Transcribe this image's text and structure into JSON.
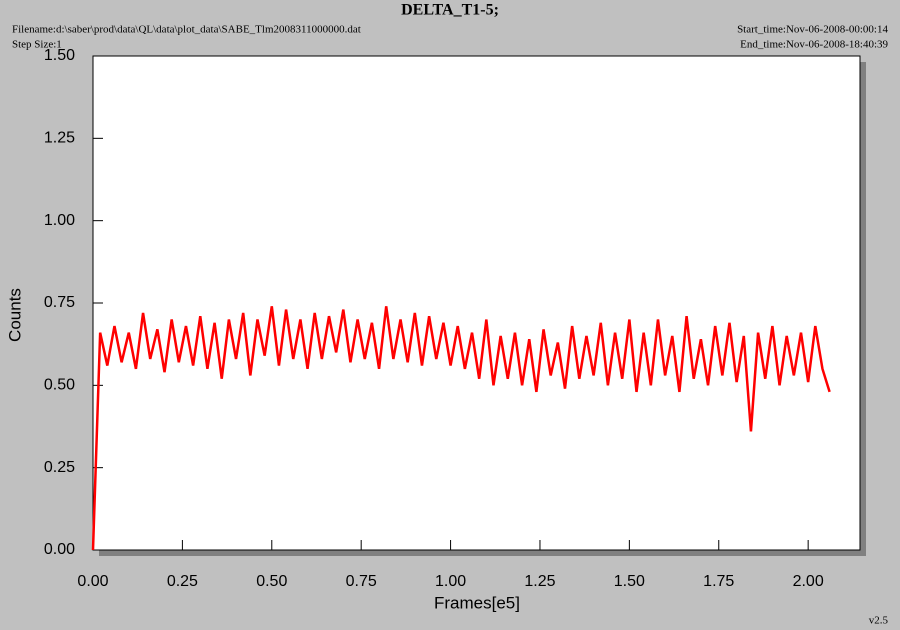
{
  "chart_data": {
    "type": "line",
    "title": "DELTA_T1-5;",
    "filename": "Filename:d:\\saber\\prod\\data\\QL\\data\\plot_data\\SABE_Tlm2008311000000.dat",
    "step_size": "Step Size:1",
    "start_time": "Start_time:Nov-06-2008-00:00:14",
    "end_time": "End_time:Nov-06-2008-18:40:39",
    "version": "v2.5",
    "x_label": "Frames[e5]",
    "y_label": "Counts",
    "xlim": [
      0,
      2.145
    ],
    "ylim": [
      0,
      1.5
    ],
    "xticks": [
      {
        "value": 0,
        "label": "0.00"
      },
      {
        "value": 0.25,
        "label": "0.25"
      },
      {
        "value": 0.5,
        "label": "0.50"
      },
      {
        "value": 0.75,
        "label": "0.75"
      },
      {
        "value": 1,
        "label": "1.00"
      },
      {
        "value": 1.25,
        "label": "1.25"
      },
      {
        "value": 1.5,
        "label": "1.50"
      },
      {
        "value": 1.75,
        "label": "1.75"
      },
      {
        "value": 2,
        "label": "2.00"
      }
    ],
    "yticks": [
      {
        "value": 0,
        "label": "0.00"
      },
      {
        "value": 0.25,
        "label": "0.25"
      },
      {
        "value": 0.5,
        "label": "0.50"
      },
      {
        "value": 0.75,
        "label": "0.75"
      },
      {
        "value": 1,
        "label": "1.00"
      },
      {
        "value": 1.25,
        "label": "1.25"
      },
      {
        "value": 1.5,
        "label": "1.50"
      }
    ],
    "x": [
      0,
      0.02,
      0.04,
      0.06,
      0.08,
      0.1,
      0.12,
      0.14,
      0.16,
      0.18,
      0.2,
      0.22,
      0.24,
      0.26,
      0.28,
      0.3,
      0.32,
      0.34,
      0.36,
      0.38,
      0.4,
      0.42,
      0.44,
      0.46,
      0.48,
      0.5,
      0.52,
      0.54,
      0.56,
      0.58,
      0.6,
      0.62,
      0.64,
      0.66,
      0.68,
      0.7,
      0.72,
      0.74,
      0.76,
      0.78,
      0.8,
      0.82,
      0.84,
      0.86,
      0.88,
      0.9,
      0.92,
      0.94,
      0.96,
      0.98,
      1,
      1.02,
      1.04,
      1.06,
      1.08,
      1.1,
      1.12,
      1.14,
      1.16,
      1.18,
      1.2,
      1.22,
      1.24,
      1.26,
      1.28,
      1.3,
      1.32,
      1.34,
      1.36,
      1.38,
      1.4,
      1.42,
      1.44,
      1.46,
      1.48,
      1.5,
      1.52,
      1.54,
      1.56,
      1.58,
      1.6,
      1.62,
      1.64,
      1.66,
      1.68,
      1.7,
      1.72,
      1.74,
      1.76,
      1.78,
      1.8,
      1.82,
      1.84,
      1.86,
      1.88,
      1.9,
      1.92,
      1.94,
      1.96,
      1.98,
      2,
      2.02,
      2.04,
      2.06
    ],
    "series": [
      {
        "color": "#ff0000",
        "values": [
          0,
          0.66,
          0.56,
          0.68,
          0.57,
          0.66,
          0.55,
          0.72,
          0.58,
          0.67,
          0.54,
          0.7,
          0.57,
          0.68,
          0.56,
          0.71,
          0.55,
          0.69,
          0.52,
          0.7,
          0.58,
          0.72,
          0.53,
          0.7,
          0.59,
          0.74,
          0.56,
          0.73,
          0.58,
          0.7,
          0.55,
          0.72,
          0.58,
          0.71,
          0.6,
          0.73,
          0.57,
          0.7,
          0.58,
          0.69,
          0.55,
          0.74,
          0.58,
          0.7,
          0.57,
          0.72,
          0.56,
          0.71,
          0.58,
          0.69,
          0.56,
          0.68,
          0.55,
          0.66,
          0.52,
          0.7,
          0.5,
          0.65,
          0.52,
          0.66,
          0.5,
          0.64,
          0.48,
          0.67,
          0.53,
          0.63,
          0.49,
          0.68,
          0.52,
          0.65,
          0.53,
          0.69,
          0.5,
          0.66,
          0.52,
          0.7,
          0.48,
          0.66,
          0.5,
          0.7,
          0.53,
          0.65,
          0.48,
          0.71,
          0.52,
          0.64,
          0.5,
          0.68,
          0.53,
          0.69,
          0.51,
          0.65,
          0.36,
          0.66,
          0.52,
          0.68,
          0.5,
          0.65,
          0.53,
          0.66,
          0.51,
          0.68,
          0.55,
          0.48
        ]
      }
    ]
  }
}
